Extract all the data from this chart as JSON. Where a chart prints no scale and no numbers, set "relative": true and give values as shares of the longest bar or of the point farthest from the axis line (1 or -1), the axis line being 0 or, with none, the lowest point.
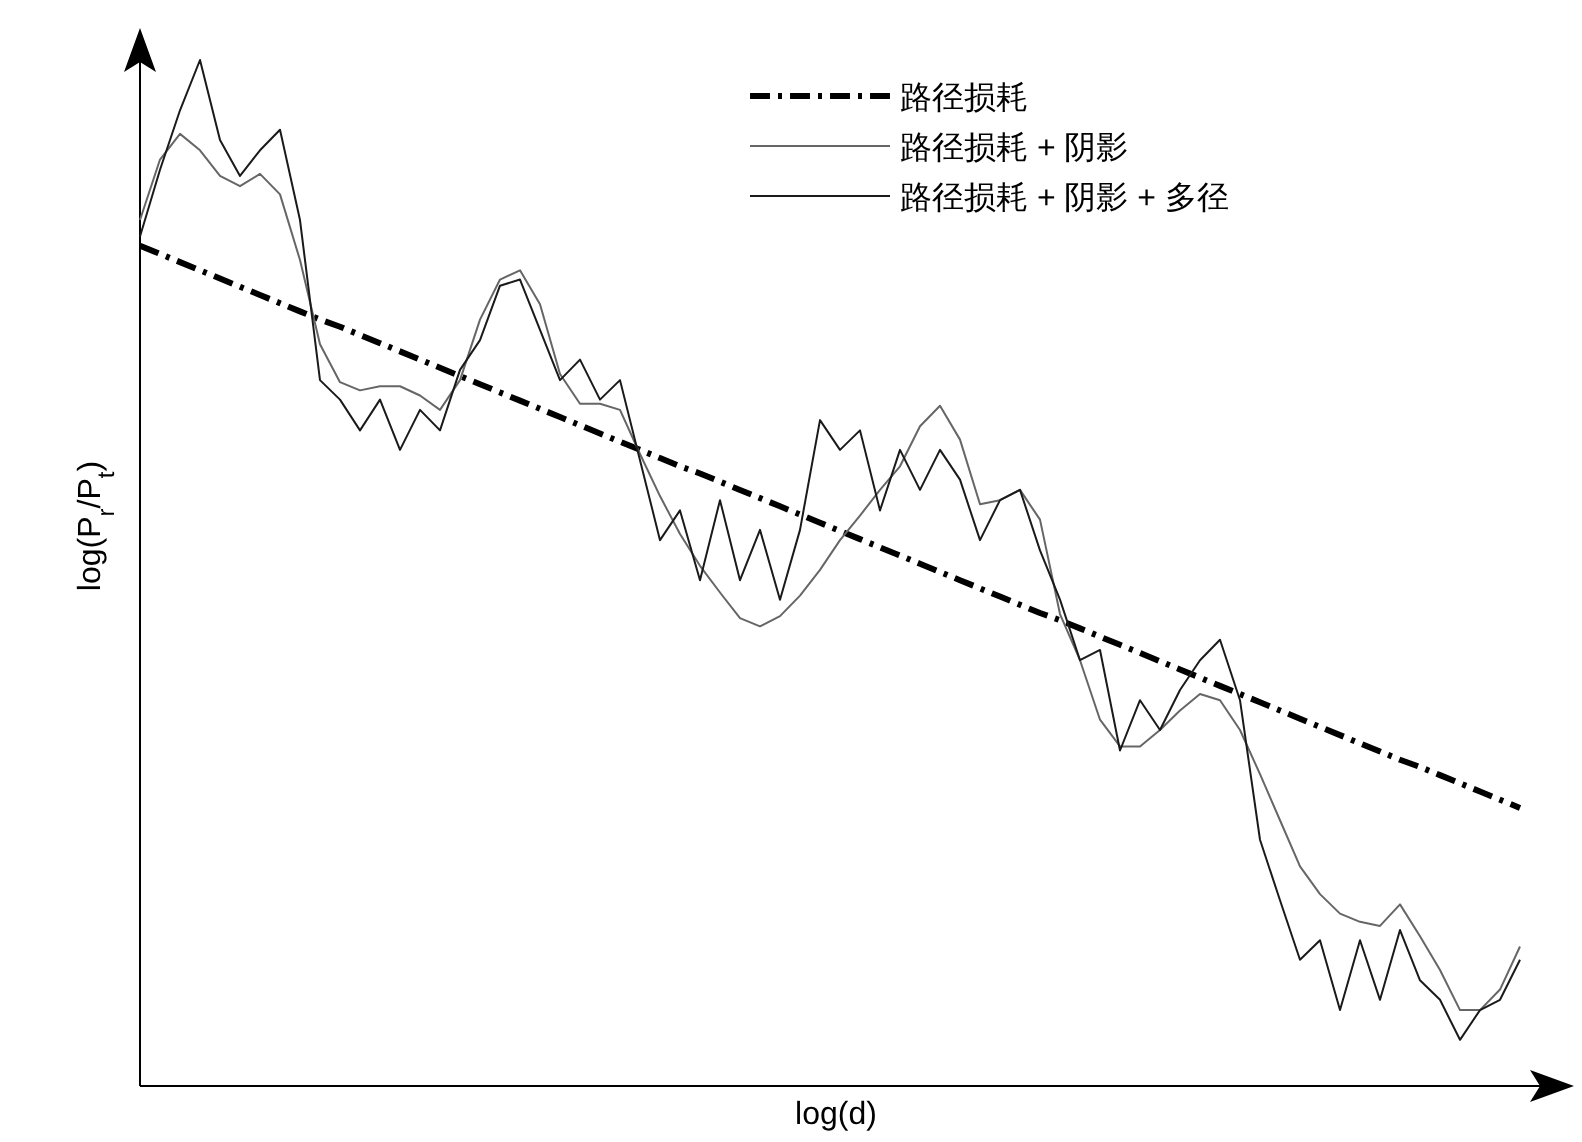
{
  "chart_data": {
    "type": "line",
    "relative": true,
    "xlabel": "log(d)",
    "ylabel": "log(P$_{r}$/P$_{t}$)",
    "legend": "top right",
    "grid": false,
    "marker": "none",
    "categories": [
      null,
      null,
      null,
      null,
      null,
      null,
      null,
      null,
      null,
      null,
      null,
      null,
      null,
      null,
      null,
      null,
      null,
      null,
      null,
      null,
      null,
      null,
      null,
      null,
      null,
      null,
      null,
      null,
      null,
      null,
      null,
      null,
      null,
      null,
      null,
      null,
      null,
      null,
      null,
      null,
      null,
      null,
      null,
      null,
      null,
      null,
      null,
      null,
      null,
      null,
      null,
      null,
      null,
      null,
      null,
      null,
      null,
      null,
      null,
      null,
      null,
      null,
      null,
      null,
      null,
      null,
      null,
      null,
      null,
      null
    ],
    "series": [
      {
        "name": "路径损耗",
        "color": "#000000",
        "line_style": "dashdot",
        "values": [
          0.819,
          0.811,
          0.803,
          0.795,
          0.787,
          0.779,
          0.771,
          0.763,
          0.755,
          0.747,
          0.74,
          0.732,
          0.724,
          0.716,
          0.708,
          0.7,
          0.692,
          0.684,
          0.676,
          0.668,
          0.66,
          0.652,
          0.644,
          0.636,
          0.628,
          0.62,
          0.612,
          0.604,
          0.597,
          0.589,
          0.581,
          0.573,
          0.565,
          0.557,
          0.549,
          0.541,
          0.533,
          0.525,
          0.517,
          0.509,
          0.501,
          0.493,
          0.485,
          0.477,
          0.469,
          0.461,
          0.454,
          0.446,
          0.438,
          0.43,
          0.422,
          0.414,
          0.406,
          0.398,
          0.39,
          0.382,
          0.374,
          0.366,
          0.358,
          0.35,
          0.342,
          0.334,
          0.326,
          0.318,
          0.311,
          0.303,
          0.295,
          0.287,
          0.279,
          0.271
        ]
      },
      {
        "name": "路径损耗 + 阴影",
        "color": "#666666",
        "line_style": "solid",
        "values": [
          0.844,
          0.903,
          0.928,
          0.912,
          0.887,
          0.877,
          0.889,
          0.869,
          0.805,
          0.723,
          0.686,
          0.678,
          0.682,
          0.682,
          0.673,
          0.659,
          0.688,
          0.747,
          0.786,
          0.795,
          0.762,
          0.694,
          0.665,
          0.665,
          0.659,
          0.616,
          0.575,
          0.538,
          0.507,
          0.481,
          0.456,
          0.448,
          0.458,
          0.478,
          0.503,
          0.532,
          0.556,
          0.581,
          0.604,
          0.643,
          0.663,
          0.63,
          0.567,
          0.571,
          0.581,
          0.552,
          0.46,
          0.415,
          0.357,
          0.331,
          0.331,
          0.347,
          0.366,
          0.382,
          0.376,
          0.347,
          0.304,
          0.259,
          0.214,
          0.187,
          0.168,
          0.16,
          0.156,
          0.177,
          0.146,
          0.113,
          0.074,
          0.074,
          0.094,
          0.136
        ]
      },
      {
        "name": "路径损耗 + 阴影 + 多径",
        "color": "#1a1a1a",
        "line_style": "solid",
        "values": [
          0.828,
          0.893,
          0.951,
          1,
          0.922,
          0.887,
          0.912,
          0.932,
          0.844,
          0.688,
          0.669,
          0.639,
          0.669,
          0.62,
          0.659,
          0.639,
          0.698,
          0.727,
          0.78,
          0.786,
          0.737,
          0.688,
          0.708,
          0.669,
          0.688,
          0.61,
          0.532,
          0.561,
          0.493,
          0.571,
          0.493,
          0.542,
          0.474,
          0.542,
          0.649,
          0.62,
          0.639,
          0.561,
          0.62,
          0.581,
          0.62,
          0.591,
          0.532,
          0.571,
          0.581,
          0.522,
          0.474,
          0.415,
          0.425,
          0.327,
          0.376,
          0.347,
          0.386,
          0.415,
          0.435,
          0.376,
          0.24,
          0.181,
          0.123,
          0.142,
          0.074,
          0.142,
          0.084,
          0.152,
          0.103,
          0.084,
          0.045,
          0.074,
          0.084,
          0.123
        ]
      }
    ]
  }
}
